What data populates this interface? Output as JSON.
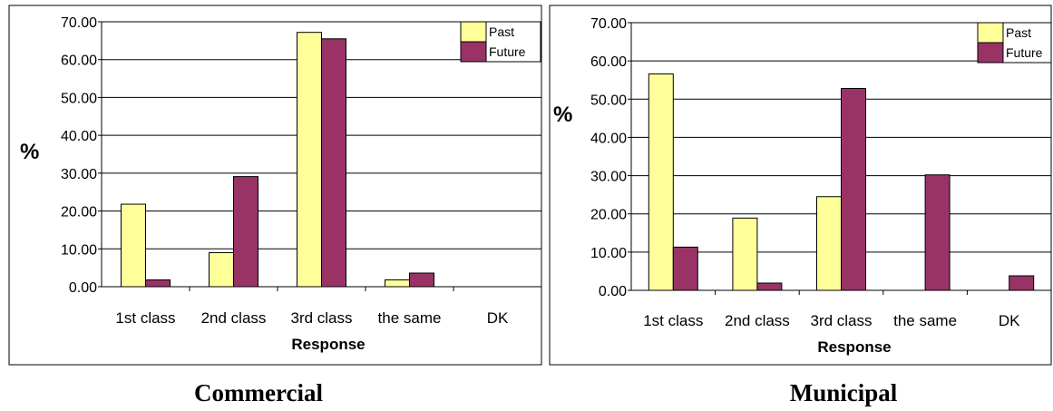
{
  "chart_data": [
    {
      "type": "bar",
      "title": "Commercial",
      "ylabel": "%",
      "xlabel": "Response",
      "categories": [
        "1st class",
        "2nd class",
        "3rd class",
        "the same",
        "DK"
      ],
      "ylim": [
        0,
        70
      ],
      "ytick_labels": [
        "0.00",
        "10.00",
        "20.00",
        "30.00",
        "40.00",
        "50.00",
        "60.00",
        "70.00"
      ],
      "legend_position": "top-right",
      "grid": true,
      "series": [
        {
          "name": "Past",
          "values": [
            21.8,
            9.0,
            67.2,
            1.8,
            0
          ],
          "color": "#FFFF99"
        },
        {
          "name": "Future",
          "values": [
            1.8,
            29.1,
            65.5,
            3.6,
            0
          ],
          "color": "#993366"
        }
      ]
    },
    {
      "type": "bar",
      "title": "Municipal",
      "ylabel": "%",
      "xlabel": "Response",
      "categories": [
        "1st class",
        "2nd class",
        "3rd class",
        "the same",
        "DK"
      ],
      "ylim": [
        0,
        70
      ],
      "ytick_labels": [
        "0.00",
        "10.00",
        "20.00",
        "30.00",
        "40.00",
        "50.00",
        "60.00",
        "70.00"
      ],
      "legend_position": "top-right",
      "grid": true,
      "series": [
        {
          "name": "Past",
          "values": [
            56.6,
            18.9,
            24.5,
            0,
            0
          ],
          "color": "#FFFF99"
        },
        {
          "name": "Future",
          "values": [
            11.3,
            1.9,
            52.8,
            30.2,
            3.8
          ],
          "color": "#993366"
        }
      ]
    }
  ]
}
